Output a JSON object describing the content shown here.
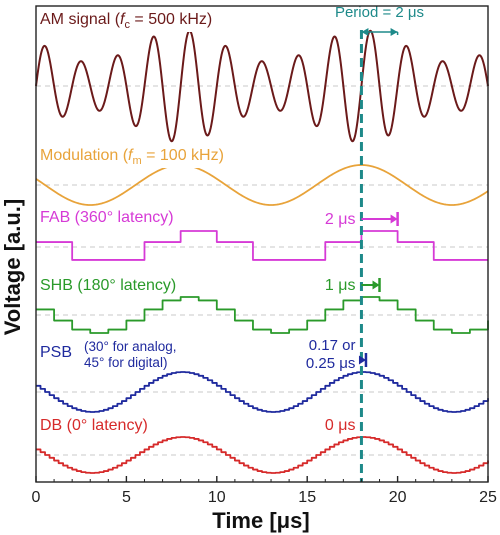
{
  "chart_data": {
    "type": "line",
    "xlabel": "Time [μs]",
    "ylabel": "Voltage [a.u.]",
    "xlim": [
      0,
      25
    ],
    "xticks": [
      "0",
      "5",
      "10",
      "15",
      "20",
      "25"
    ],
    "grid": false,
    "marker_time_us": 18,
    "series": [
      {
        "key": "am",
        "label_pre": "AM signal (",
        "label_sym": "f",
        "label_sub": "c",
        "label_post": " = 500 kHz)",
        "color": "#6b1a1a",
        "kind": "am",
        "carrier_freq_mhz": 0.5,
        "mod_freq_mhz": 0.1,
        "mod_depth": 0.4,
        "peak_time_us": 8,
        "annotation": "Period = 2 μs",
        "period_start_us": 18,
        "period_end_us": 20
      },
      {
        "key": "mod",
        "label_pre": "Modulation (",
        "label_sym": "f",
        "label_sub": "m",
        "label_post": " = 100 kHz)",
        "color": "#e8a33a",
        "kind": "sine",
        "freq_mhz": 0.1,
        "peak_time_us": 8
      },
      {
        "key": "fab",
        "label": "FAB (360° latency)",
        "color": "#d63ad6",
        "kind": "step",
        "step_us": 2,
        "latency_us": 2,
        "peak_time_us": 8,
        "annotation": "2 μs"
      },
      {
        "key": "shb",
        "label": "SHB (180° latency)",
        "color": "#2a9a2a",
        "kind": "step",
        "step_us": 1,
        "latency_us": 1,
        "peak_time_us": 8,
        "annotation": "1 μs"
      },
      {
        "key": "psb",
        "label": "PSB",
        "label_note_1": "(30° for analog,",
        "label_note_2": "45° for digital)",
        "color": "#1f2a9e",
        "kind": "step",
        "step_us": 0.25,
        "latency_us": 0.25,
        "peak_time_us": 8,
        "annotation": "0.17 or",
        "annotation_2": "0.25 μs"
      },
      {
        "key": "db",
        "label": "DB (0° latency)",
        "color": "#d62a2a",
        "kind": "step",
        "step_us": 0.25,
        "latency_us": 0,
        "peak_time_us": 8,
        "annotation": "0 μs"
      }
    ]
  }
}
